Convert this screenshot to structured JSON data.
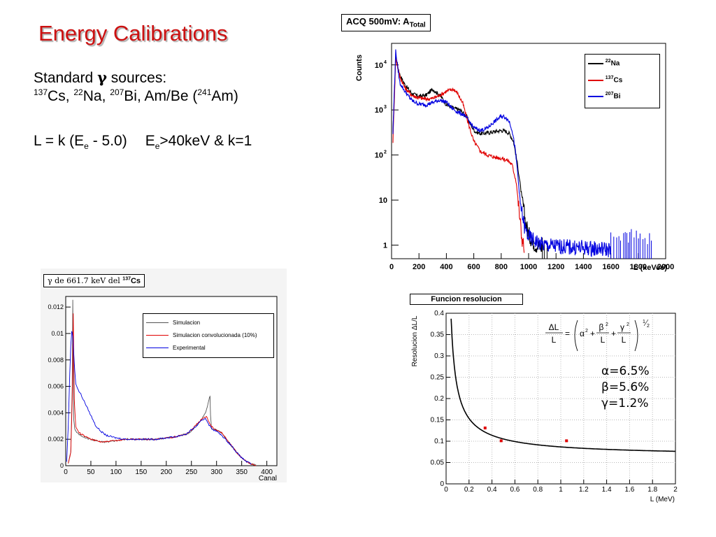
{
  "slide": {
    "title": "Energy Calibrations",
    "line1_pre": "Standard ",
    "line1_greek": "γ",
    "line1_post": " sources:",
    "sources": [
      {
        "mass": "137",
        "symbol": "Cs",
        "sep": ", "
      },
      {
        "mass": "22",
        "symbol": "Na",
        "sep": ", "
      },
      {
        "mass": "207",
        "symbol": "Bi",
        "sep": ", Am/Be ("
      },
      {
        "mass": "241",
        "symbol": "Am",
        "sep": ")"
      }
    ],
    "formula": {
      "a": "L = k (E",
      "b": "e",
      "c": " - 5.0)",
      "d": "E",
      "e": "e",
      "f": ">40keV & k=1"
    }
  },
  "chart_data": [
    {
      "type": "line",
      "title": "ACQ 500mV: A",
      "title_sub": "Total",
      "xlabel": "L (keVee)",
      "ylabel": "Counts",
      "xlim": [
        0,
        2000
      ],
      "ylim": [
        0.5,
        30000
      ],
      "y_scale": "log",
      "x_ticks": [
        "0",
        "200",
        "400",
        "600",
        "800",
        "1000",
        "1200",
        "1400",
        "1600",
        "1800",
        "2000"
      ],
      "y_ticks": [
        {
          "base": "1",
          "exp": ""
        },
        {
          "base": "10",
          "exp": ""
        },
        {
          "base": "10",
          "exp": "2"
        },
        {
          "base": "10",
          "exp": "3"
        },
        {
          "base": "10",
          "exp": "4"
        }
      ],
      "legend_position": "top-right",
      "series": [
        {
          "name": "Na",
          "mass": "22",
          "color": "#000000",
          "x": [
            10,
            30,
            60,
            100,
            150,
            200,
            250,
            300,
            330,
            360,
            400,
            450,
            500,
            550,
            580,
            610,
            650,
            700,
            750,
            800,
            830,
            860,
            890,
            920,
            950,
            980,
            1010,
            1050,
            1100
          ],
          "y": [
            300,
            15000,
            6000,
            3500,
            2300,
            2000,
            2100,
            2900,
            2400,
            2000,
            1300,
            1100,
            1000,
            700,
            450,
            330,
            300,
            310,
            330,
            350,
            340,
            300,
            200,
            60,
            12,
            3,
            1.5,
            1,
            0.9
          ]
        },
        {
          "name": "Cs",
          "mass": "137",
          "color": "#e00000",
          "x": [
            10,
            30,
            60,
            100,
            150,
            200,
            250,
            300,
            350,
            400,
            450,
            480,
            520,
            560,
            600,
            650,
            700,
            750,
            800,
            850,
            880,
            910,
            930,
            950,
            970
          ],
          "y": [
            200,
            14000,
            5500,
            3000,
            2100,
            1850,
            1750,
            1800,
            2100,
            2600,
            2900,
            2400,
            1400,
            500,
            200,
            120,
            100,
            90,
            85,
            75,
            60,
            25,
            6,
            1.5,
            0.8
          ]
        },
        {
          "name": "Bi",
          "mass": "207",
          "color": "#0000e0",
          "x": [
            10,
            30,
            60,
            100,
            150,
            200,
            250,
            300,
            350,
            400,
            440,
            480,
            520,
            560,
            600,
            650,
            700,
            750,
            800,
            830,
            860,
            880,
            900,
            920,
            940,
            970,
            1000,
            1100,
            1300,
            1600
          ],
          "y": [
            300,
            20000,
            4000,
            2500,
            1600,
            1350,
            1300,
            1450,
            1650,
            1500,
            1100,
            900,
            800,
            600,
            400,
            350,
            400,
            550,
            720,
            700,
            550,
            350,
            150,
            40,
            8,
            2.5,
            1.5,
            1,
            0.9,
            0.8
          ]
        }
      ]
    },
    {
      "type": "line",
      "title": "γ de 661.7 keV del ",
      "title_mass": "137",
      "title_symbol": "Cs",
      "xlabel": "Canal",
      "ylabel": "",
      "xlim": [
        0,
        420
      ],
      "ylim": [
        0,
        0.0128
      ],
      "x_ticks": [
        "0",
        "50",
        "100",
        "150",
        "200",
        "250",
        "300",
        "350",
        "400"
      ],
      "y_ticks": [
        "0",
        "0.002",
        "0.004",
        "0.006",
        "0.008",
        "0.01",
        "0.012"
      ],
      "y_tick_values": [
        0,
        0.002,
        0.004,
        0.006,
        0.008,
        0.01,
        0.012
      ],
      "legend_position": "top-right",
      "series": [
        {
          "name": "Simulacion",
          "color": "#555555",
          "x": [
            5,
            10,
            13,
            14,
            15,
            16,
            18,
            20,
            25,
            30,
            40,
            50,
            60,
            70,
            80,
            100,
            120,
            150,
            180,
            200,
            220,
            240,
            250,
            260,
            270,
            280,
            285,
            287,
            288,
            290,
            300,
            310,
            320,
            330,
            340,
            350,
            360,
            370,
            380
          ],
          "y": [
            0.0002,
            0.001,
            0.006,
            0.0125,
            0.008,
            0.0035,
            0.0028,
            0.0026,
            0.0024,
            0.0023,
            0.0021,
            0.002,
            0.0019,
            0.0018,
            0.0018,
            0.0019,
            0.002,
            0.002,
            0.002,
            0.0021,
            0.0022,
            0.0024,
            0.0026,
            0.003,
            0.0035,
            0.0042,
            0.005,
            0.0053,
            0.0038,
            0.0028,
            0.0027,
            0.0025,
            0.002,
            0.0015,
            0.001,
            0.0006,
            0.0003,
            0.0001,
            3e-05
          ]
        },
        {
          "name": "Simulacion convolucionada (10%)",
          "color": "#e00000",
          "x": [
            5,
            10,
            13,
            15,
            17,
            20,
            25,
            30,
            40,
            50,
            60,
            70,
            80,
            100,
            120,
            150,
            180,
            200,
            220,
            240,
            250,
            260,
            270,
            280,
            285,
            290,
            295,
            300,
            310,
            320,
            330,
            340,
            350,
            360,
            370,
            380
          ],
          "y": [
            0.0002,
            0.001,
            0.005,
            0.0115,
            0.005,
            0.003,
            0.0026,
            0.0024,
            0.0022,
            0.002,
            0.0019,
            0.0018,
            0.0018,
            0.0019,
            0.002,
            0.002,
            0.002,
            0.0021,
            0.0022,
            0.0024,
            0.0027,
            0.0031,
            0.0035,
            0.0037,
            0.0033,
            0.003,
            0.0028,
            0.0027,
            0.0025,
            0.002,
            0.0015,
            0.001,
            0.0006,
            0.0003,
            0.0001,
            3e-05
          ]
        },
        {
          "name": "Experimental",
          "color": "#0000e0",
          "x": [
            2,
            5,
            8,
            10,
            12,
            14,
            16,
            18,
            20,
            25,
            30,
            35,
            40,
            45,
            50,
            60,
            70,
            80,
            90,
            100,
            120,
            150,
            180,
            200,
            220,
            240,
            250,
            260,
            270,
            278,
            285,
            290,
            300,
            310,
            320,
            330,
            340,
            350,
            360,
            370
          ],
          "y": [
            0.0003,
            0.003,
            0.007,
            0.009,
            0.0102,
            0.0098,
            0.0085,
            0.0072,
            0.0062,
            0.0057,
            0.0054,
            0.005,
            0.0046,
            0.0042,
            0.0038,
            0.003,
            0.0026,
            0.0023,
            0.0022,
            0.0021,
            0.002,
            0.002,
            0.002,
            0.0021,
            0.0022,
            0.0024,
            0.0027,
            0.003,
            0.0034,
            0.0036,
            0.0031,
            0.0028,
            0.0026,
            0.0023,
            0.0019,
            0.0015,
            0.001,
            0.0006,
            0.0003,
            0.0001
          ]
        }
      ]
    },
    {
      "type": "line",
      "title": "Funcion resolucion",
      "xlabel": "L (MeV)",
      "ylabel": "Resolucion ΔL/L",
      "xlim": [
        0,
        2
      ],
      "ylim": [
        0,
        0.4
      ],
      "x_ticks": [
        "0",
        "0.2",
        "0.4",
        "0.6",
        "0.8",
        "1",
        "1.2",
        "1.4",
        "1.6",
        "1.8",
        "2"
      ],
      "x_tick_values": [
        0,
        0.2,
        0.4,
        0.6,
        0.8,
        1,
        1.2,
        1.4,
        1.6,
        1.8,
        2
      ],
      "y_ticks": [
        "0",
        "0.05",
        "0.1",
        "0.15",
        "0.2",
        "0.25",
        "0.3",
        "0.35",
        "0.4"
      ],
      "y_tick_values": [
        0,
        0.05,
        0.1,
        0.15,
        0.2,
        0.25,
        0.3,
        0.35,
        0.4
      ],
      "grid": true,
      "fit_params": {
        "alpha": 0.065,
        "beta": 0.056,
        "gamma": 0.012
      },
      "points": {
        "color": "#e00000",
        "x": [
          0.34,
          0.48,
          1.05
        ],
        "y": [
          0.131,
          0.101,
          0.101
        ]
      },
      "params_text": [
        "α=6.5%",
        "β=5.6%",
        "γ=1.2%"
      ],
      "formula": {
        "lhs_num": "ΔL",
        "lhs_den": "L",
        "eq": "=",
        "a2": "α",
        "b_num": "β",
        "b_den": "L",
        "g_num": "γ",
        "g_den": "L",
        "plus": "+",
        "exp_2": "2",
        "half_num": "1",
        "half_den": "2"
      }
    }
  ]
}
